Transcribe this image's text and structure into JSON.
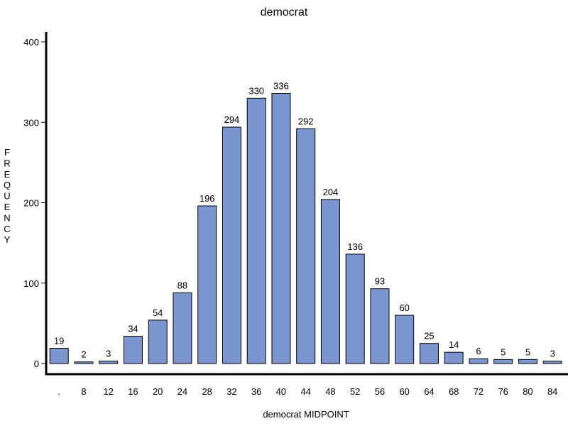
{
  "chart_data": {
    "type": "bar",
    "title": "democrat",
    "xlabel": "democrat MIDPOINT",
    "ylabel": "FREQUENCY",
    "categories": [
      ".",
      "8",
      "12",
      "16",
      "20",
      "24",
      "28",
      "32",
      "36",
      "40",
      "44",
      "48",
      "52",
      "56",
      "60",
      "64",
      "68",
      "72",
      "76",
      "80",
      "84"
    ],
    "values": [
      19,
      2,
      3,
      34,
      54,
      88,
      196,
      294,
      330,
      336,
      292,
      204,
      136,
      93,
      60,
      25,
      14,
      6,
      5,
      5,
      3
    ],
    "yticks": [
      0,
      100,
      200,
      300,
      400
    ],
    "ylim": [
      0,
      400
    ],
    "grid": false,
    "colors": {
      "bar": "#7b96cf",
      "outline": "#000000"
    }
  }
}
